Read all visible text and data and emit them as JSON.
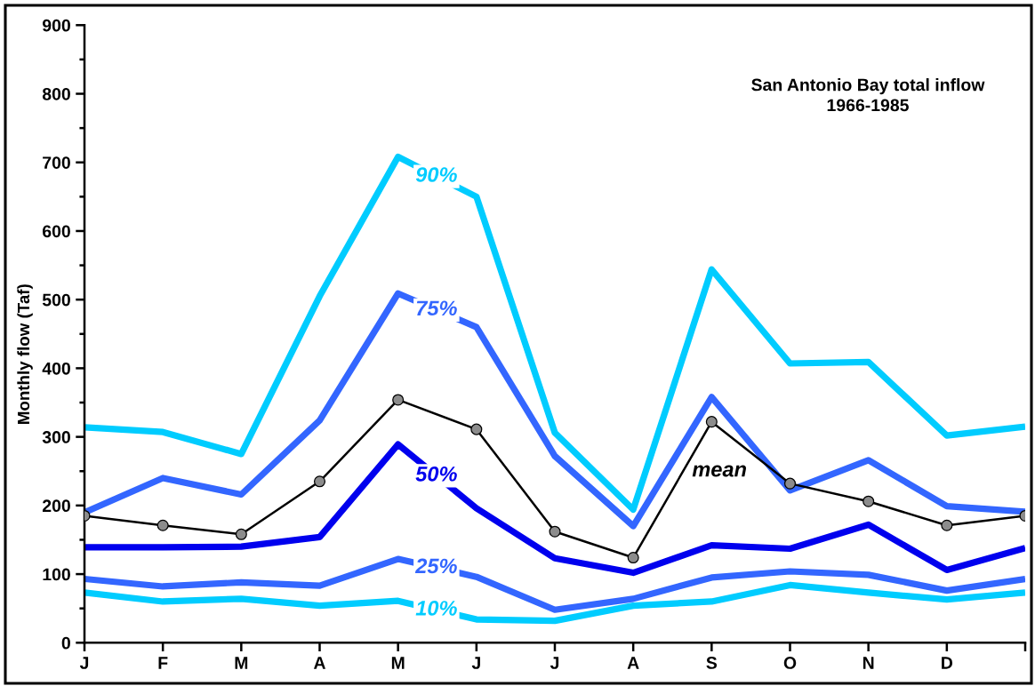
{
  "chart_data": {
    "type": "line",
    "title": "San Antonio Bay total inflow",
    "subtitle": "1966-1985",
    "ylabel": "Monthly flow (Taf)",
    "categories": [
      "J",
      "F",
      "M",
      "A",
      "M",
      "J",
      "J",
      "A",
      "S",
      "O",
      "N",
      "D",
      null
    ],
    "ylim": [
      0,
      900
    ],
    "yticks": [
      0,
      {
        "value": 50,
        "label": null
      },
      100,
      {
        "value": 150,
        "label": null
      },
      200,
      {
        "value": 250,
        "label": null
      },
      300,
      {
        "value": 350,
        "label": null
      },
      400,
      {
        "value": 450,
        "label": null
      },
      500,
      {
        "value": 550,
        "label": null
      },
      600,
      {
        "value": 650,
        "label": null
      },
      700,
      {
        "value": 750,
        "label": null
      },
      800,
      {
        "value": 850,
        "label": null
      },
      900
    ],
    "series": [
      {
        "name": "10%",
        "color": "#00ccff",
        "values": [
          73,
          60,
          64,
          54,
          61,
          34,
          32,
          54,
          60,
          84,
          73,
          63,
          73
        ]
      },
      {
        "name": "25%",
        "color": "#3366ff",
        "values": [
          93,
          82,
          88,
          83,
          122,
          96,
          48,
          64,
          95,
          104,
          99,
          76,
          93
        ]
      },
      {
        "name": "50%",
        "color": "#0000ee",
        "values": [
          139,
          139,
          140,
          154,
          289,
          196,
          123,
          102,
          142,
          137,
          172,
          106,
          138
        ]
      },
      {
        "name": "75%",
        "color": "#3366ff",
        "values": [
          190,
          240,
          216,
          324,
          509,
          460,
          272,
          170,
          358,
          222,
          266,
          199,
          191
        ]
      },
      {
        "name": "90%",
        "color": "#00ccff",
        "values": [
          314,
          307,
          275,
          505,
          708,
          650,
          306,
          194,
          544,
          407,
          409,
          302,
          315
        ]
      },
      {
        "name": "mean",
        "color": "#000000",
        "marker": "circle",
        "values": [
          185,
          171,
          158,
          235,
          354,
          311,
          162,
          124,
          322,
          232,
          206,
          171,
          185
        ]
      }
    ],
    "grid": false,
    "legend": false
  }
}
